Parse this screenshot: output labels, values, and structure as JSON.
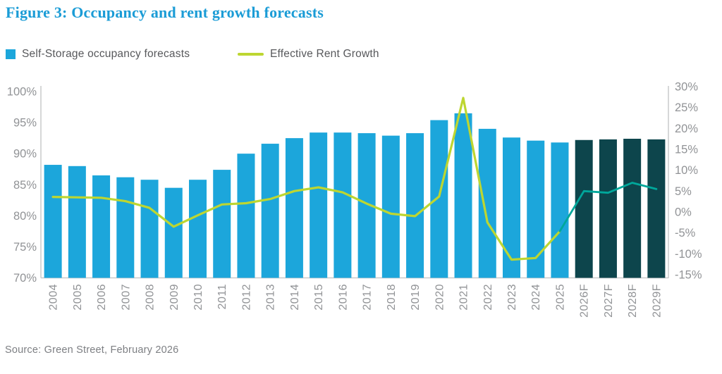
{
  "title": "Figure 3: Occupancy and rent growth forecasts",
  "legend": {
    "bars_label": "Self-Storage occupancy forecasts",
    "line_label": "Effective Rent Growth"
  },
  "source": "Source: Green Street, February 2026",
  "colors": {
    "title_text": "#1b9cd6",
    "bar_historical": "#1ca6db",
    "bar_forecast": "#0d454c",
    "line_historical": "#bdd631",
    "line_forecast": "#00a79b",
    "axis_line": "#c9cacc",
    "axis_text": "#919396",
    "legend_text": "#57585b",
    "source_text": "#7d7f83"
  },
  "chart_data": {
    "type": "bar+line",
    "title": "Occupancy and rent growth forecasts",
    "categories": [
      "2004",
      "2005",
      "2006",
      "2007",
      "2008",
      "2009",
      "2010",
      "2011",
      "2012",
      "2013",
      "2014",
      "2015",
      "2016",
      "2017",
      "2018",
      "2019",
      "2020",
      "2021",
      "2022",
      "2023",
      "2024",
      "2025",
      "2026F",
      "2027F",
      "2028F",
      "2029F"
    ],
    "series": [
      {
        "name": "Self-Storage occupancy forecasts",
        "type": "bar",
        "axis": "left",
        "unit": "percent",
        "forecast_start_index": 22,
        "values": [
          88.2,
          88.0,
          86.5,
          86.2,
          85.8,
          84.5,
          85.8,
          87.4,
          90.0,
          91.6,
          92.5,
          93.4,
          93.4,
          93.3,
          92.9,
          93.3,
          95.4,
          96.5,
          94.0,
          92.6,
          92.1,
          91.8,
          92.2,
          92.3,
          92.4,
          92.3
        ]
      },
      {
        "name": "Effective Rent Growth",
        "type": "line",
        "axis": "right",
        "unit": "percent",
        "forecast_start_index": 22,
        "values": [
          3.6,
          3.5,
          3.4,
          2.6,
          1.0,
          -3.5,
          -0.8,
          1.8,
          2.1,
          3.1,
          5.0,
          5.9,
          4.7,
          2.0,
          -0.4,
          -1.0,
          3.7,
          27.3,
          -2.5,
          -11.4,
          -11.0,
          -4.6,
          5.0,
          4.6,
          7.0,
          5.5
        ]
      }
    ],
    "left_axis": {
      "min": 70,
      "max": 100,
      "tick_step": 5,
      "tick_labels": [
        "100%",
        "95%",
        "90%",
        "85%",
        "80%",
        "75%",
        "70%"
      ]
    },
    "right_axis": {
      "min": -15,
      "max": 30,
      "tick_step": 5,
      "tick_labels": [
        "30%",
        "25%",
        "20%",
        "15%",
        "10%",
        "5%",
        "0%",
        "-5%",
        "-10%",
        "-15%"
      ]
    },
    "grid": false,
    "legend_position": "top-left",
    "x_label_rotation": -90
  }
}
